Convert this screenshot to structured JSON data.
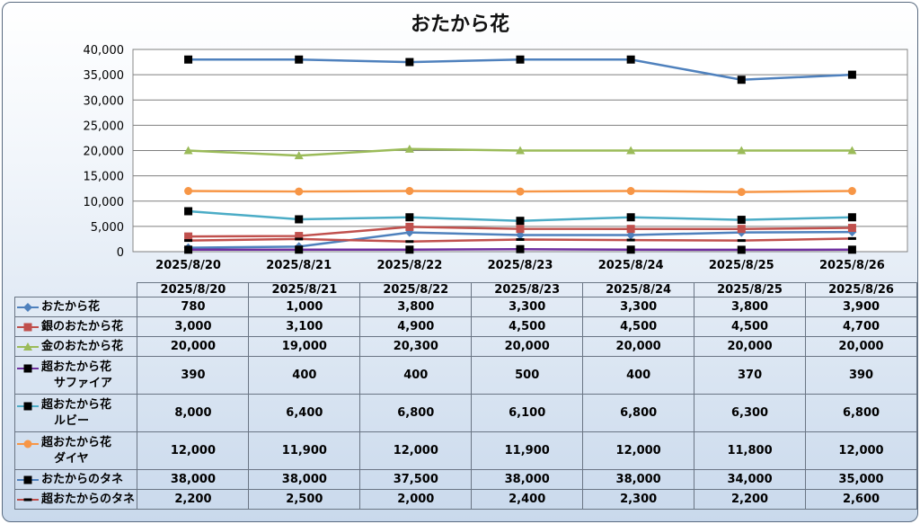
{
  "title": "おたから花",
  "chart_data": {
    "type": "line",
    "title": "おたから花",
    "categories": [
      "2025/8/20",
      "2025/8/21",
      "2025/8/22",
      "2025/8/23",
      "2025/8/24",
      "2025/8/25",
      "2025/8/26"
    ],
    "ylim": [
      0,
      40000
    ],
    "yticks": [
      0,
      5000,
      10000,
      15000,
      20000,
      25000,
      30000,
      35000,
      40000
    ],
    "ytick_labels": [
      "0",
      "5,000",
      "10,000",
      "15,000",
      "20,000",
      "25,000",
      "30,000",
      "35,000",
      "40,000"
    ],
    "grid": true,
    "legend": "data-table",
    "series": [
      {
        "name": "おたから花",
        "name_lines": [
          "おたから花"
        ],
        "color": "#4f81bd",
        "marker": "diamond",
        "values": [
          780,
          1000,
          3800,
          3300,
          3300,
          3800,
          3900
        ],
        "labels": [
          "780",
          "1,000",
          "3,800",
          "3,300",
          "3,300",
          "3,800",
          "3,900"
        ]
      },
      {
        "name": "銀のおたから花",
        "name_lines": [
          "銀のおたから花"
        ],
        "color": "#c0504d",
        "marker": "square",
        "values": [
          3000,
          3100,
          4900,
          4500,
          4500,
          4500,
          4700
        ],
        "labels": [
          "3,000",
          "3,100",
          "4,900",
          "4,500",
          "4,500",
          "4,500",
          "4,700"
        ]
      },
      {
        "name": "金のおたから花",
        "name_lines": [
          "金のおたから花"
        ],
        "color": "#9bbb59",
        "marker": "triangle",
        "values": [
          20000,
          19000,
          20300,
          20000,
          20000,
          20000,
          20000
        ],
        "labels": [
          "20,000",
          "19,000",
          "20,300",
          "20,000",
          "20,000",
          "20,000",
          "20,000"
        ]
      },
      {
        "name": "超おたから花サファイア",
        "name_lines": [
          "超おたから花",
          "サファイア"
        ],
        "color": "#7030a0",
        "marker": "square-black",
        "values": [
          390,
          400,
          400,
          500,
          400,
          370,
          390
        ],
        "labels": [
          "390",
          "400",
          "400",
          "500",
          "400",
          "370",
          "390"
        ]
      },
      {
        "name": "超おたから花ルビー",
        "name_lines": [
          "超おたから花",
          "ルビー"
        ],
        "color": "#4bacc6",
        "marker": "square-black",
        "values": [
          8000,
          6400,
          6800,
          6100,
          6800,
          6300,
          6800
        ],
        "labels": [
          "8,000",
          "6,400",
          "6,800",
          "6,100",
          "6,800",
          "6,300",
          "6,800"
        ]
      },
      {
        "name": "超おたから花ダイヤ",
        "name_lines": [
          "超おたから花",
          "ダイヤ"
        ],
        "color": "#f79646",
        "marker": "circle",
        "values": [
          12000,
          11900,
          12000,
          11900,
          12000,
          11800,
          12000
        ],
        "labels": [
          "12,000",
          "11,900",
          "12,000",
          "11,900",
          "12,000",
          "11,800",
          "12,000"
        ]
      },
      {
        "name": "おたからのタネ",
        "name_lines": [
          "おたからのタネ"
        ],
        "color": "#4f81bd",
        "marker": "square-black",
        "values": [
          38000,
          38000,
          37500,
          38000,
          38000,
          34000,
          35000
        ],
        "labels": [
          "38,000",
          "38,000",
          "37,500",
          "38,000",
          "38,000",
          "34,000",
          "35,000"
        ]
      },
      {
        "name": "超おたからのタネ",
        "name_lines": [
          "超おたからのタネ"
        ],
        "color": "#c0504d",
        "marker": "dash-black",
        "values": [
          2200,
          2500,
          2000,
          2400,
          2300,
          2200,
          2600
        ],
        "labels": [
          "2,200",
          "2,500",
          "2,000",
          "2,400",
          "2,300",
          "2,200",
          "2,600"
        ]
      }
    ]
  }
}
